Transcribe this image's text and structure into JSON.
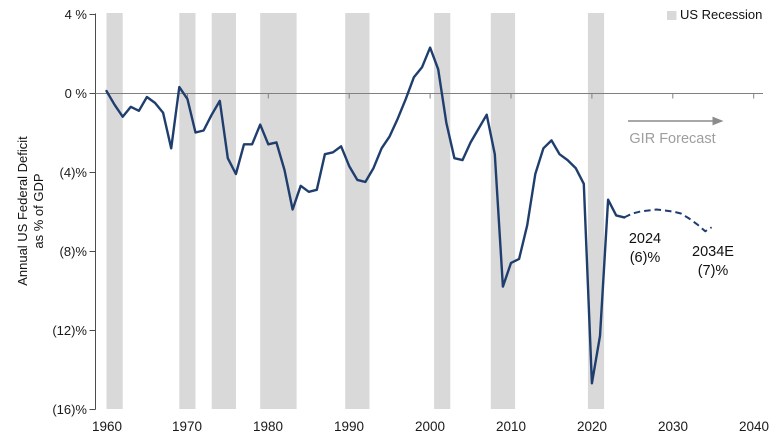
{
  "chart_data": {
    "type": "line",
    "title": "",
    "xlabel": "",
    "ylabel_lines": [
      "Annual US Federal Deficit",
      "as % of GDP"
    ],
    "xlim": [
      1960,
      2040
    ],
    "ylim": [
      -16,
      4
    ],
    "grid": "off",
    "x_ticks": [
      "1960",
      "1970",
      "1980",
      "1990",
      "2000",
      "2010",
      "2020",
      "2030",
      "2040"
    ],
    "x_tick_years": [
      1960,
      1970,
      1980,
      1990,
      2000,
      2010,
      2020,
      2030,
      2040
    ],
    "y_ticks": [
      {
        "value": 4,
        "label": "4 %"
      },
      {
        "value": 0,
        "label": "0 %"
      },
      {
        "value": -4,
        "label": "(4)%"
      },
      {
        "value": -8,
        "label": "(8)%"
      },
      {
        "value": -12,
        "label": "(12)%"
      },
      {
        "value": -16,
        "label": "(16)%"
      }
    ],
    "series": [
      {
        "name": "Annual US federal deficit as % of GDP (actual)",
        "style": "solid",
        "x": [
          1960,
          1961,
          1962,
          1963,
          1964,
          1965,
          1966,
          1967,
          1968,
          1969,
          1970,
          1971,
          1972,
          1973,
          1974,
          1975,
          1976,
          1977,
          1978,
          1979,
          1980,
          1981,
          1982,
          1983,
          1984,
          1985,
          1986,
          1987,
          1988,
          1989,
          1990,
          1991,
          1992,
          1993,
          1994,
          1995,
          1996,
          1997,
          1998,
          1999,
          2000,
          2001,
          2002,
          2003,
          2004,
          2005,
          2006,
          2007,
          2008,
          2009,
          2010,
          2011,
          2012,
          2013,
          2014,
          2015,
          2016,
          2017,
          2018,
          2019,
          2020,
          2021,
          2022,
          2023,
          2024
        ],
        "y": [
          0.1,
          -0.6,
          -1.2,
          -0.7,
          -0.9,
          -0.2,
          -0.5,
          -1.0,
          -2.8,
          0.3,
          -0.3,
          -2.0,
          -1.9,
          -1.1,
          -0.4,
          -3.3,
          -4.1,
          -2.6,
          -2.6,
          -1.6,
          -2.6,
          -2.5,
          -3.9,
          -5.9,
          -4.7,
          -5.0,
          -4.9,
          -3.1,
          -3.0,
          -2.7,
          -3.7,
          -4.4,
          -4.5,
          -3.8,
          -2.8,
          -2.2,
          -1.3,
          -0.3,
          0.8,
          1.3,
          2.3,
          1.2,
          -1.5,
          -3.3,
          -3.4,
          -2.5,
          -1.8,
          -1.1,
          -3.1,
          -9.8,
          -8.6,
          -8.4,
          -6.7,
          -4.1,
          -2.8,
          -2.4,
          -3.1,
          -3.4,
          -3.8,
          -4.6,
          -14.7,
          -12.3,
          -5.4,
          -6.2,
          -6.3
        ]
      },
      {
        "name": "GIR Forecast",
        "style": "dashed",
        "x": [
          2024,
          2025,
          2026,
          2027,
          2028,
          2029,
          2030,
          2031,
          2032,
          2033,
          2034,
          2034.8
        ],
        "y": [
          -6.3,
          -6.1,
          -6.0,
          -5.95,
          -5.9,
          -5.95,
          -6.0,
          -6.1,
          -6.35,
          -6.65,
          -7.0,
          -6.8
        ]
      }
    ],
    "recession_bands": [
      {
        "start": 1960,
        "end": 1962
      },
      {
        "start": 1969,
        "end": 1971
      },
      {
        "start": 1973,
        "end": 1976
      },
      {
        "start": 1979,
        "end": 1983.5
      },
      {
        "start": 1989.5,
        "end": 1992.5
      },
      {
        "start": 2000.5,
        "end": 2002.5
      },
      {
        "start": 2007.5,
        "end": 2010.5
      },
      {
        "start": 2019.5,
        "end": 2021.5
      }
    ],
    "legend": {
      "label": "US Recession",
      "position": "top-right",
      "swatch_color": "#d9d9d9"
    },
    "forecast_label": "GIR Forecast",
    "annotations": [
      {
        "lines": [
          "2024",
          "(6)%"
        ]
      },
      {
        "lines": [
          "2034E",
          "(7)%"
        ]
      }
    ],
    "colors": {
      "line": "#1f3e6e",
      "band": "#d9d9d9",
      "axis": "#4d4d4d",
      "zero_line": "#808080",
      "arrow_gray": "#8c8c8c",
      "forecast_text_gray": "#9e9e9e",
      "text": "#1a1a1a"
    }
  }
}
